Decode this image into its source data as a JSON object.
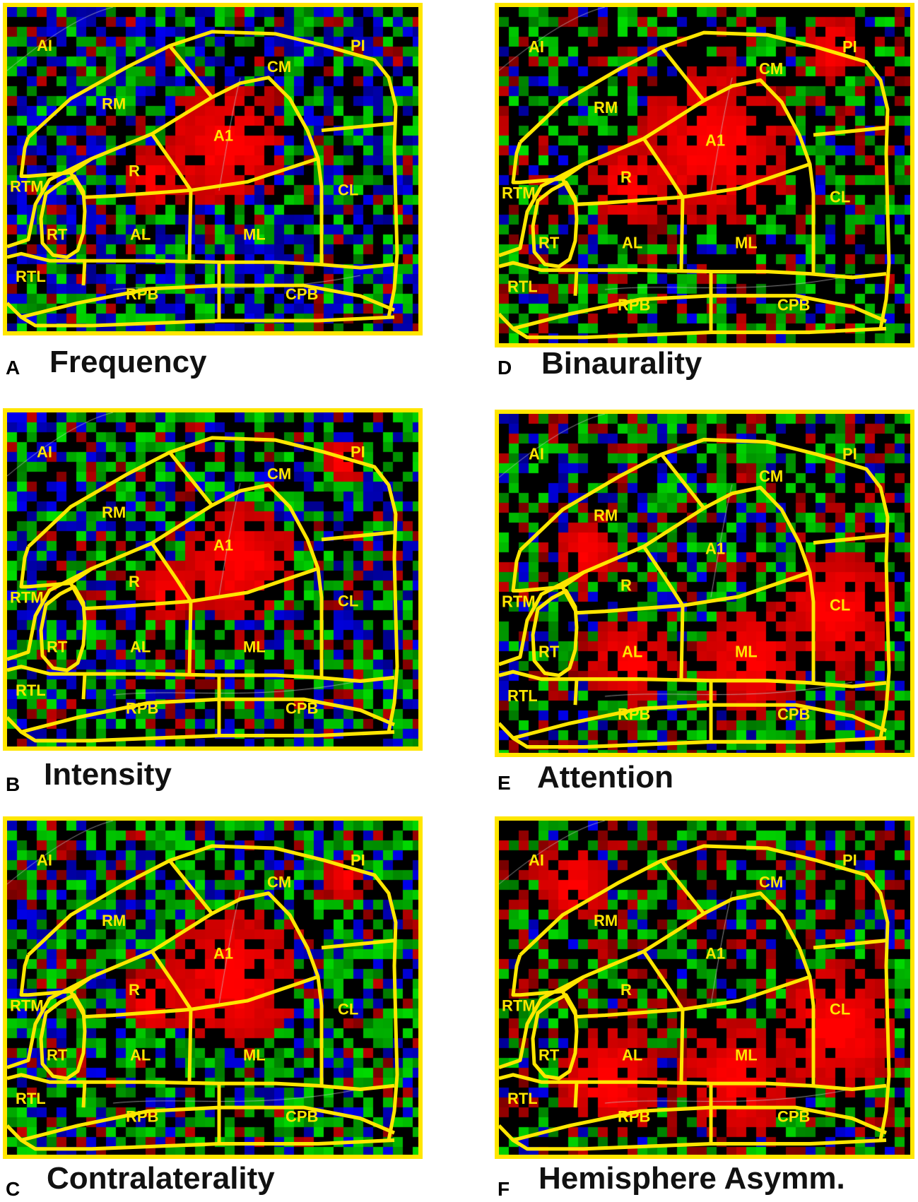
{
  "colors": {
    "border": "#ffe600",
    "red": "#ff0000",
    "green": "#10c010",
    "blue": "#1010e0",
    "background": "#000000"
  },
  "region_labels": [
    "AI",
    "PI",
    "CM",
    "RM",
    "A1",
    "R",
    "RTM",
    "CL",
    "RT",
    "AL",
    "ML",
    "RTL",
    "RPB",
    "CPB"
  ],
  "panels": [
    {
      "letter": "A",
      "title": "Frequency",
      "red_level": 0.3,
      "green_level": 0.3,
      "blue_level": 0.35
    },
    {
      "letter": "B",
      "title": "Intensity",
      "red_level": 0.35,
      "green_level": 0.3,
      "blue_level": 0.25
    },
    {
      "letter": "C",
      "title": "Contralaterality",
      "red_level": 0.35,
      "green_level": 0.4,
      "blue_level": 0.2
    },
    {
      "letter": "D",
      "title": "Binaurality",
      "red_level": 0.45,
      "green_level": 0.3,
      "blue_level": 0.1
    },
    {
      "letter": "E",
      "title": "Attention",
      "red_level": 0.55,
      "green_level": 0.3,
      "blue_level": 0.15
    },
    {
      "letter": "F",
      "title": "Hemisphere Asymm.",
      "red_level": 0.6,
      "green_level": 0.25,
      "blue_level": 0.1
    }
  ]
}
